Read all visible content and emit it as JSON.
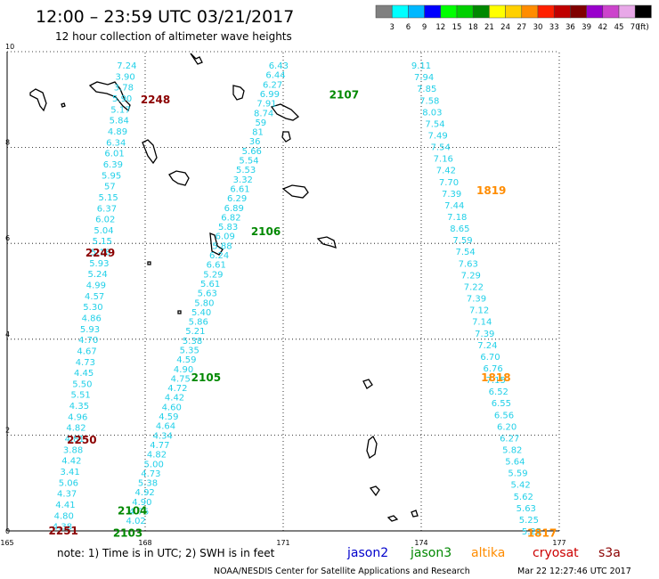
{
  "title": "12:00 – 23:59 UTC 03/21/2017",
  "subtitle": "12 hour collection of altimeter wave heights",
  "legend": {
    "colors": [
      "#808080",
      "#00ffff",
      "#00b8ff",
      "#0000ff",
      "#00ff00",
      "#00d000",
      "#008800",
      "#ffff00",
      "#ffd000",
      "#ff8c00",
      "#ff2000",
      "#c00000",
      "#800000",
      "#9900cc",
      "#cc44cc",
      "#e8a8e8",
      "#000000"
    ],
    "labels": [
      "3",
      "6",
      "9",
      "12",
      "15",
      "18",
      "21",
      "24",
      "27",
      "30",
      "33",
      "36",
      "39",
      "42",
      "45",
      "70",
      "(ft)"
    ]
  },
  "map": {
    "lon_range": [
      165,
      177
    ],
    "lat_range": [
      0,
      10
    ],
    "x_ticks": [
      "165",
      "168",
      "171",
      "174",
      "177"
    ],
    "y_ticks": [
      "0",
      "2",
      "4",
      "6",
      "8",
      "10"
    ],
    "grid": "dotted"
  },
  "tracks": [
    {
      "values": [
        "7.24",
        "3.90",
        "3.78",
        "5.90",
        "5.17",
        "5.84",
        "4.89",
        "6.34",
        "6.01",
        "6.39",
        "5.95",
        "57",
        "5.15",
        "6.37",
        "6.02",
        "5.04",
        "5.15",
        "5.18",
        "5.93",
        "5.24",
        "4.99",
        "4.57",
        "5.30",
        "4.86",
        "5.93",
        "4.70",
        "4.67",
        "4.73",
        "4.45",
        "5.50",
        "5.51",
        "4.35",
        "4.96",
        "4.82",
        "4.81",
        "3.88",
        "4.42",
        "3.41",
        "5.06",
        "4.37",
        "4.41",
        "4.80",
        "4.38"
      ],
      "lon_start": 167.6,
      "lat_start": 9.72,
      "lon_end": 166.2,
      "lat_end": 0.1
    },
    {
      "values": [
        "6.43",
        "6.44",
        "6.27",
        "6.99",
        "7.91",
        "8.74",
        "59",
        "81",
        "36",
        "5.66",
        "5.54",
        "5.53",
        "3.32",
        "6.61",
        "6.29",
        "6.89",
        "6.82",
        "5.83",
        "6.09",
        "5.88",
        "6.24",
        "6.61",
        "5.29",
        "5.61",
        "5.63",
        "5.80",
        "5.40",
        "5.86",
        "5.21",
        "5.38",
        "5.35",
        "4.59",
        "4.90",
        "4.75",
        "4.72",
        "4.42",
        "4.60",
        "4.59",
        "4.64",
        "4.34",
        "4.77",
        "4.82",
        "5.00",
        "4.73",
        "5.38",
        "4.92",
        "4.90",
        "4.76",
        "4.02"
      ],
      "lon_start": 170.9,
      "lat_start": 9.72,
      "lon_end": 167.8,
      "lat_end": 0.22
    },
    {
      "values": [
        "9.11",
        "7.94",
        "7.85",
        "7.58",
        "8.03",
        "7.54",
        "7.49",
        "7.54",
        "7.16",
        "7.42",
        "7.70",
        "7.39",
        "7.44",
        "7.18",
        "8.65",
        "7.59",
        "7.54",
        "7.63",
        "7.29",
        "7.22",
        "7.39",
        "7.12",
        "7.14",
        "7.39",
        "7.24",
        "6.70",
        "6.76",
        "7.15",
        "6.52",
        "6.55",
        "6.56",
        "6.20",
        "6.27",
        "5.82",
        "5.64",
        "5.59",
        "5.42",
        "5.62",
        "5.63",
        "5.25",
        "5.25"
      ],
      "lon_start": 174.0,
      "lat_start": 9.72,
      "lon_end": 176.4,
      "lat_end": 0.0
    }
  ],
  "pass_labels": [
    {
      "text": "2248",
      "lon": 167.9,
      "lat": 9.0,
      "color": "#8b0000"
    },
    {
      "text": "2249",
      "lon": 166.7,
      "lat": 5.8,
      "color": "#8b0000"
    },
    {
      "text": "2250",
      "lon": 166.3,
      "lat": 1.9,
      "color": "#8b0000"
    },
    {
      "text": "2251",
      "lon": 165.9,
      "lat": 0.0,
      "color": "#8b0000"
    },
    {
      "text": "2107",
      "lon": 172.0,
      "lat": 9.1,
      "color": "#008800"
    },
    {
      "text": "2106",
      "lon": 170.3,
      "lat": 6.25,
      "color": "#008800"
    },
    {
      "text": "2105",
      "lon": 169.0,
      "lat": 3.2,
      "color": "#008800"
    },
    {
      "text": "2104",
      "lon": 167.4,
      "lat": 0.42,
      "color": "#008800"
    },
    {
      "text": "2103",
      "lon": 167.3,
      "lat": -0.05,
      "color": "#008800"
    },
    {
      "text": "1819",
      "lon": 175.2,
      "lat": 7.1,
      "color": "#ff8c00"
    },
    {
      "text": "1818",
      "lon": 175.3,
      "lat": 3.2,
      "color": "#ff8c00"
    },
    {
      "text": "1817",
      "lon": 176.3,
      "lat": -0.05,
      "color": "#ff8c00"
    }
  ],
  "note": "note: 1) Time is in UTC; 2) SWH is in feet",
  "satellites": [
    {
      "name": "jason2",
      "color": "#0000cc"
    },
    {
      "name": "jason3",
      "color": "#008800"
    },
    {
      "name": "altika",
      "color": "#ff8c00"
    },
    {
      "name": "cryosat",
      "color": "#cc0000"
    },
    {
      "name": "s3a",
      "color": "#8b0000"
    }
  ],
  "credit": "NOAA/NESDIS Center for Satellite Applications and Research",
  "timestamp": "Mar 22 12:27:46 UTC 2017"
}
